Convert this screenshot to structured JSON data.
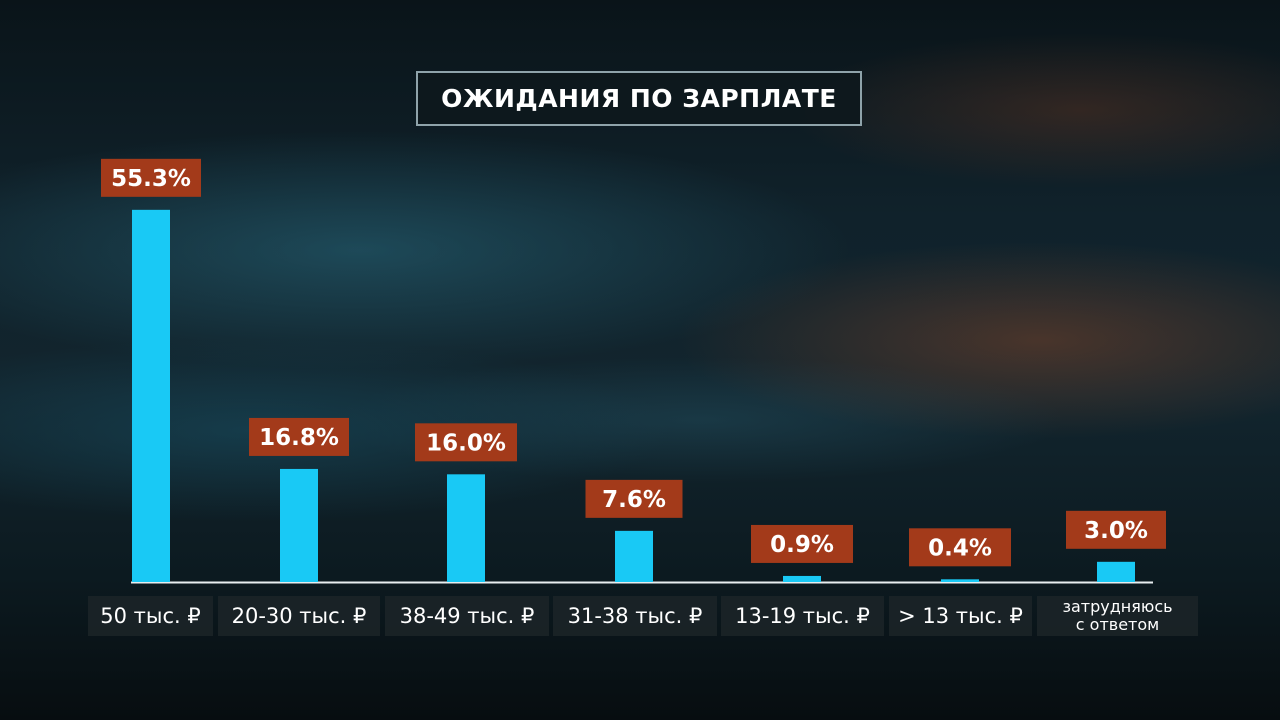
{
  "chart_data": {
    "type": "bar",
    "title": "ОЖИДАНИЯ ПО ЗАРПЛАТЕ",
    "categories": [
      "50 тыс. ₽",
      "20-30 тыс. ₽",
      "38-49 тыс. ₽",
      "31-38 тыс. ₽",
      "13-19 тыс. ₽",
      "> 13 тыс. ₽",
      "затрудняюсь\nс ответом"
    ],
    "values": [
      55.3,
      16.8,
      16.0,
      7.6,
      0.9,
      0.4,
      3.0
    ],
    "value_labels": [
      "55.3%",
      "16.8%",
      "16.0%",
      "7.6%",
      "0.9%",
      "0.4%",
      "3.0%"
    ],
    "xlabel": "",
    "ylabel": "",
    "grid": false,
    "colors": {
      "bar": "#19c9f5",
      "label_bg": "#a33a1a",
      "label_text": "#ffffff",
      "axis": "#e8eef0"
    }
  }
}
